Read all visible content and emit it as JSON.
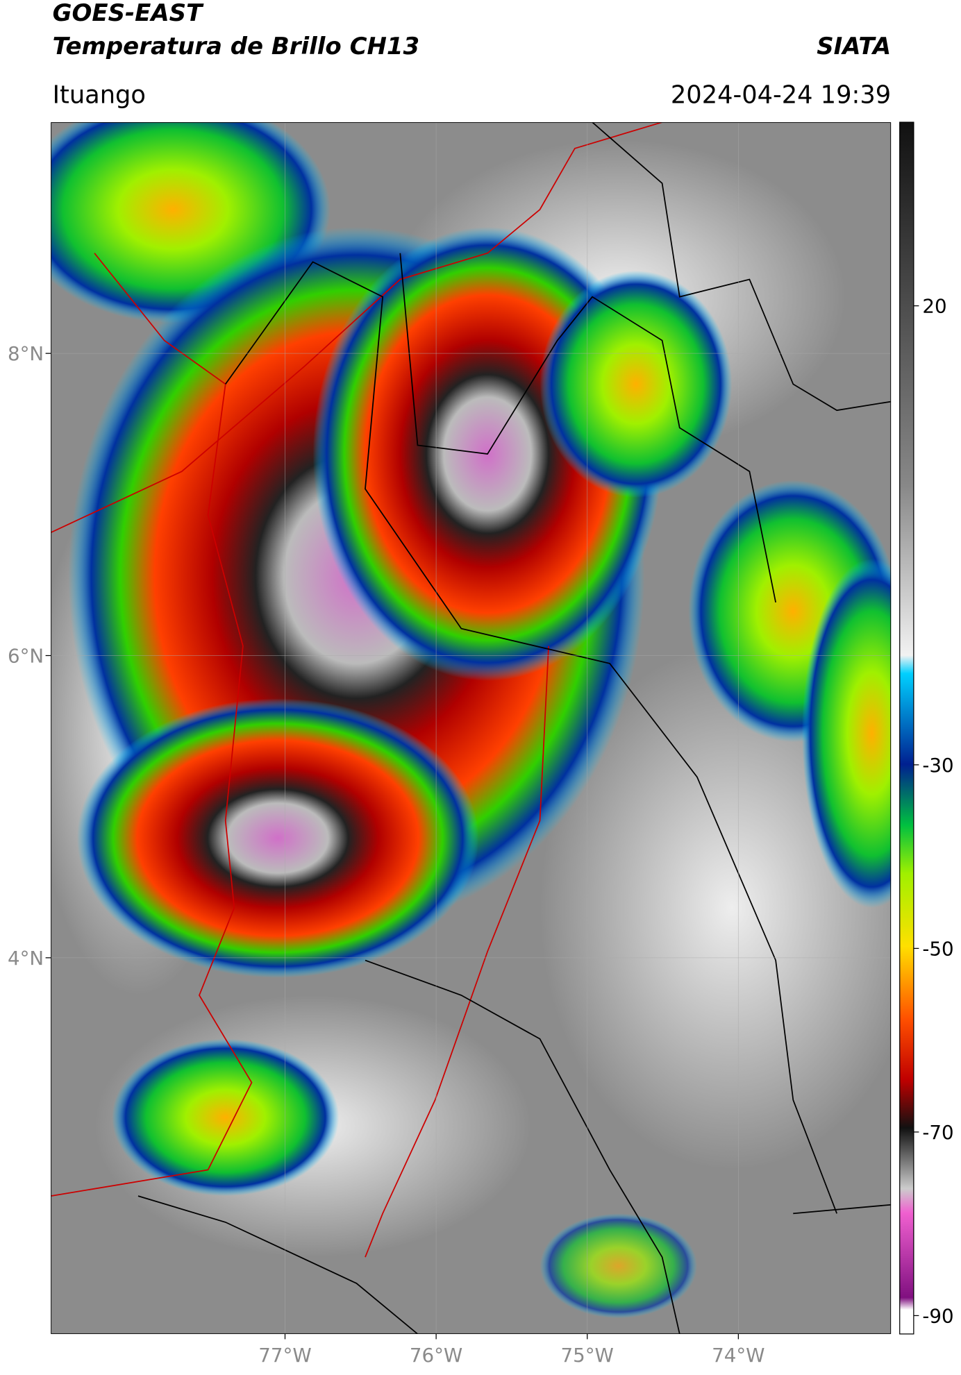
{
  "header": {
    "title_line1": "GOES-EAST",
    "title_line2": "Temperatura de Brillo CH13",
    "source": "SIATA",
    "location": "Ituango",
    "datetime": "2024-04-24 19:39"
  },
  "map": {
    "lonlim": [
      -78.55,
      -72.99
    ],
    "latlim": [
      1.51,
      9.53
    ],
    "lat_ticks": [
      {
        "value": 8,
        "label": "8°N"
      },
      {
        "value": 6,
        "label": "6°N"
      },
      {
        "value": 4,
        "label": "4°N"
      }
    ],
    "lon_ticks": [
      {
        "value": -77,
        "label": "77°W"
      },
      {
        "value": -76,
        "label": "76°W"
      },
      {
        "value": -75,
        "label": "75°W"
      },
      {
        "value": -74,
        "label": "74°W"
      }
    ]
  },
  "colorbar": {
    "lim": [
      -92,
      40
    ],
    "ticks": [
      20,
      -30,
      -50,
      -70,
      -90
    ]
  }
}
